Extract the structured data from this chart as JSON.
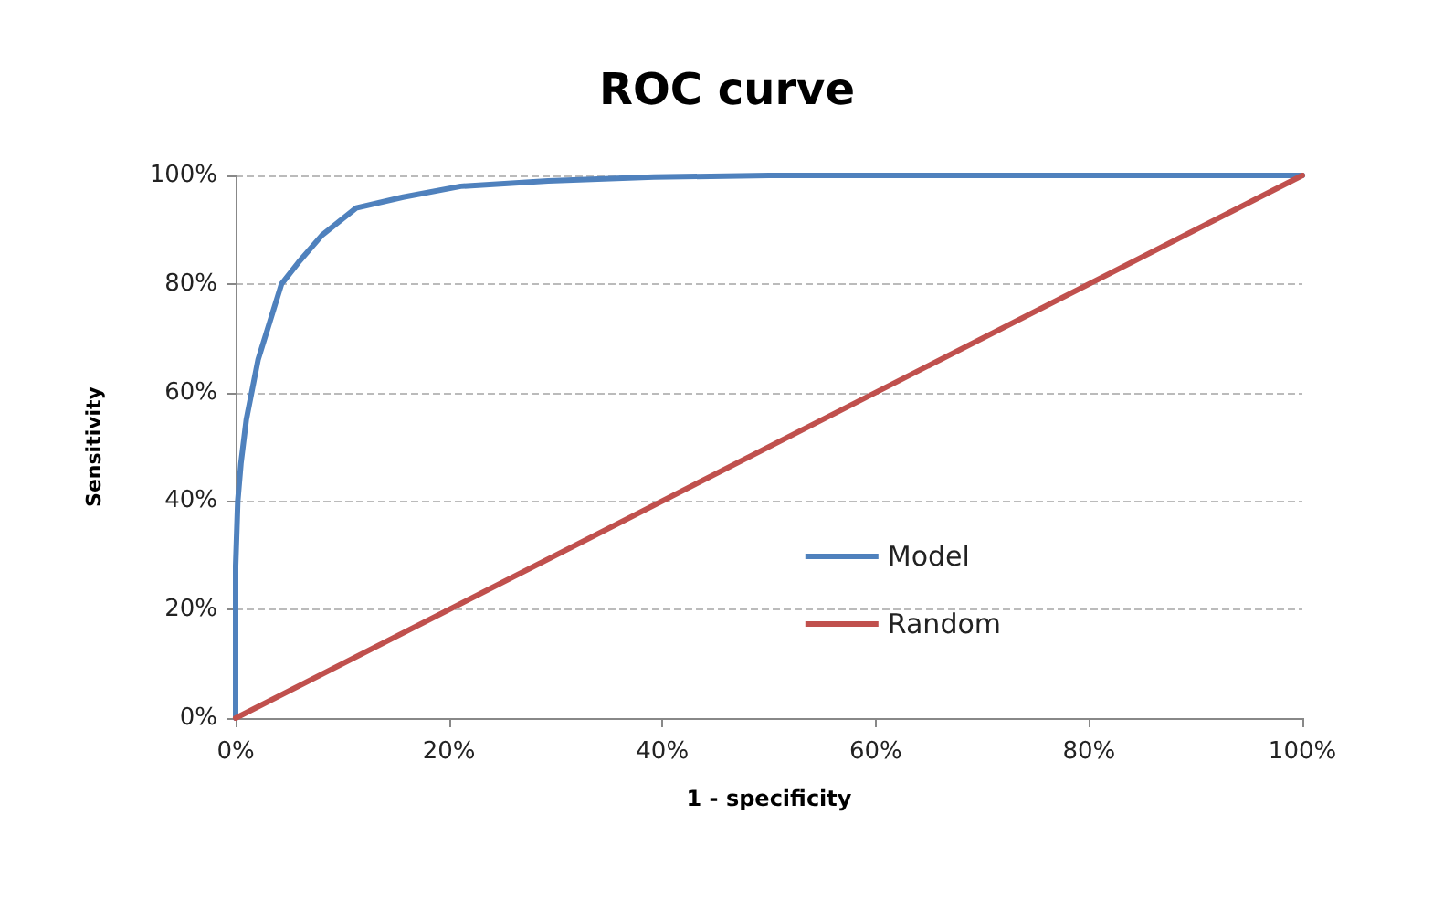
{
  "chart_data": {
    "type": "line",
    "title": "ROC curve",
    "xlabel": "1 - specificity",
    "ylabel": "Sensitivity",
    "xlim": [
      0,
      100
    ],
    "ylim": [
      0,
      100
    ],
    "xticks": [
      {
        "value": 0,
        "label": "0%"
      },
      {
        "value": 20,
        "label": "20%"
      },
      {
        "value": 40,
        "label": "40%"
      },
      {
        "value": 60,
        "label": "60%"
      },
      {
        "value": 80,
        "label": "80%"
      },
      {
        "value": 100,
        "label": "100%"
      }
    ],
    "yticks": [
      {
        "value": 0,
        "label": "0%"
      },
      {
        "value": 20,
        "label": "20%"
      },
      {
        "value": 40,
        "label": "40%"
      },
      {
        "value": 60,
        "label": "60%"
      },
      {
        "value": 80,
        "label": "80%"
      },
      {
        "value": 100,
        "label": "100%"
      }
    ],
    "series": [
      {
        "name": "Model",
        "color": "#4f81bd",
        "x": [
          0,
          0,
          0.2,
          0.5,
          1,
          2.1,
          3.2,
          4.3,
          5.9,
          8.1,
          11.3,
          15.7,
          21.1,
          29.3,
          39.2,
          50,
          100
        ],
        "values": [
          0,
          28,
          40,
          47,
          55,
          66,
          73,
          80,
          84,
          89,
          94,
          96,
          98,
          99,
          99.7,
          100,
          100
        ]
      },
      {
        "name": "Random",
        "color": "#c0504d",
        "x": [
          0,
          100
        ],
        "values": [
          0,
          100
        ]
      }
    ],
    "grid": "y",
    "legend": "bottom right",
    "marker": "none",
    "line_style": "solid"
  }
}
